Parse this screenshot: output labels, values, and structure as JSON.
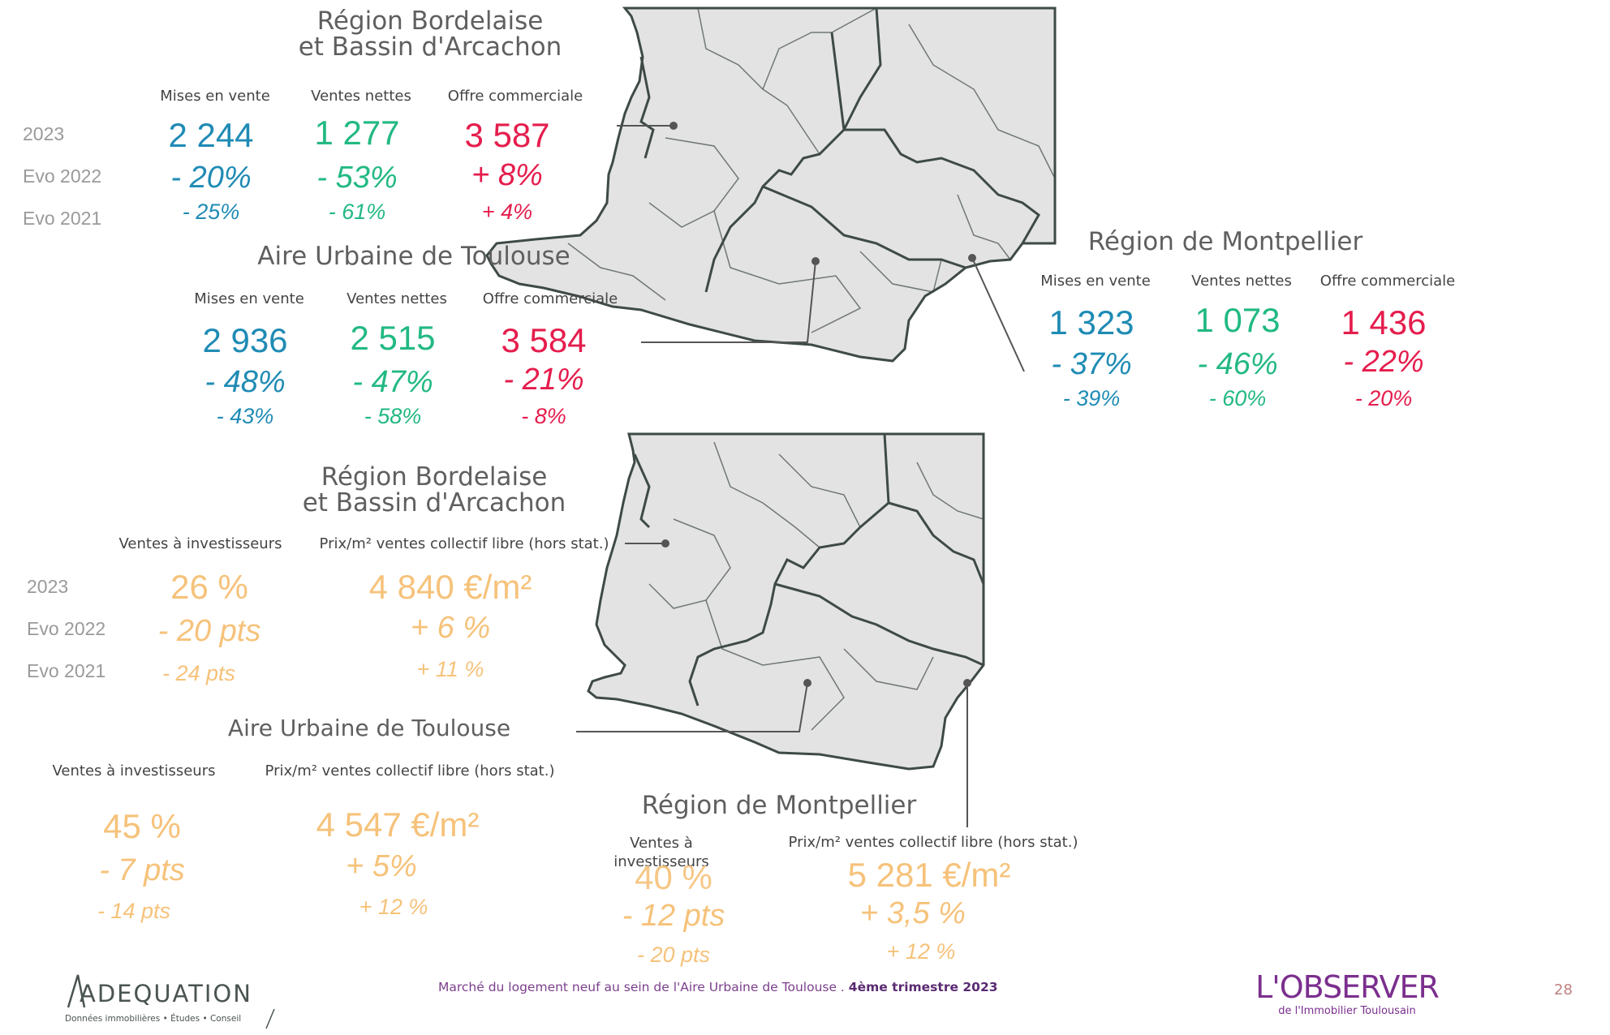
{
  "top": {
    "bordeaux": {
      "title_line1": "Région Bordelaise",
      "title_line2": "et Bassin d'Arcachon",
      "headers": [
        "Mises en vente",
        "Ventes nettes",
        "Offre commerciale"
      ],
      "row_labels": [
        "2023",
        "Evo 2022",
        "Evo 2021"
      ],
      "values_2023": [
        "2 244",
        "1 277",
        "3 587"
      ],
      "evo_2022": [
        "- 20%",
        "- 53%",
        "+ 8%"
      ],
      "evo_2021": [
        "- 25%",
        "- 61%",
        "+ 4%"
      ]
    },
    "toulouse": {
      "title": "Aire Urbaine de Toulouse",
      "headers": [
        "Mises en vente",
        "Ventes nettes",
        "Offre commerciale"
      ],
      "values_2023": [
        "2 936",
        "2 515",
        "3 584"
      ],
      "evo_2022": [
        "- 48%",
        "- 47%",
        "- 21%"
      ],
      "evo_2021": [
        "- 43%",
        "- 58%",
        "- 8%"
      ]
    },
    "montpellier": {
      "title": "Région de Montpellier",
      "headers": [
        "Mises en vente",
        "Ventes nettes",
        "Offre commerciale"
      ],
      "values_2023": [
        "1 323",
        "1 073",
        "1 436"
      ],
      "evo_2022": [
        "- 37%",
        "- 46%",
        "- 22%"
      ],
      "evo_2021": [
        "- 39%",
        "- 60%",
        "- 20%"
      ]
    }
  },
  "bottom": {
    "bordeaux": {
      "title_line1": "Région Bordelaise",
      "title_line2": "et Bassin d'Arcachon",
      "headers": [
        "Ventes à investisseurs",
        "Prix/m² ventes collectif libre (hors stat.)"
      ],
      "row_labels": [
        "2023",
        "Evo 2022",
        "Evo 2021"
      ],
      "values_2023": [
        "26 %",
        "4 840 €/m²"
      ],
      "evo_2022": [
        "- 20 pts",
        "+ 6 %"
      ],
      "evo_2021": [
        "- 24 pts",
        "+ 11 %"
      ]
    },
    "toulouse": {
      "title": "Aire Urbaine de Toulouse",
      "headers": [
        "Ventes  à investisseurs",
        "Prix/m² ventes collectif libre (hors stat.)"
      ],
      "values_2023": [
        "45 %",
        "4 547 €/m²"
      ],
      "evo_2022": [
        "- 7 pts",
        "+ 5%"
      ],
      "evo_2021": [
        "- 14 pts",
        "+ 12 %"
      ]
    },
    "montpellier": {
      "title": "Région de Montpellier",
      "headers": [
        "Ventes à investisseurs",
        "Prix/m² ventes collectif libre (hors stat.)"
      ],
      "values_2023": [
        "40 %",
        "5 281 €/m²"
      ],
      "evo_2022": [
        "- 12 pts",
        "+ 3,5 %"
      ],
      "evo_2021": [
        "- 20 pts",
        "+ 12 %"
      ]
    }
  },
  "footer": {
    "logo_left": "ADEQUATION",
    "logo_left_tagline": "Données immobilières • Études • Conseil",
    "caption": "Marché du logement neuf au sein de l'Aire Urbaine de Toulouse . ",
    "quarter": "4ème trimestre 2023",
    "logo_right": "L'OBSERVER",
    "logo_right_tagline": "de l'Immobilier Toulousain",
    "page_number": "28"
  },
  "colors": {
    "blue": "#1f8bb4",
    "green": "#22b982",
    "red": "#e51d4d",
    "orange": "#f6c27a",
    "map_fill": "#e3e3e3",
    "map_border": "#3e4a46",
    "brand_purple": "#7b3f8c"
  }
}
